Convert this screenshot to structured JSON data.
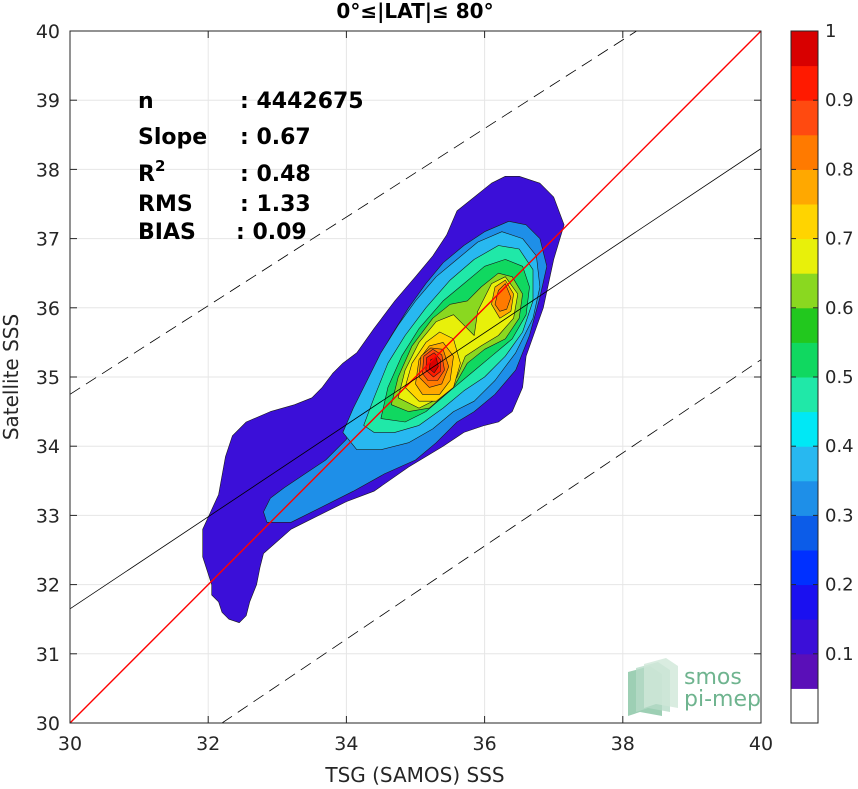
{
  "chart_data": {
    "type": "heatmap",
    "subtype": "filled-contour density scatter",
    "title": "0°≤|LAT|≤ 80°",
    "xlabel": "TSG (SAMOS) SSS",
    "ylabel": "Satellite SSS",
    "xlim": [
      30,
      40
    ],
    "ylim": [
      30,
      40
    ],
    "x_ticks": [
      "30",
      "32",
      "34",
      "36",
      "38",
      "40"
    ],
    "y_ticks": [
      "30",
      "31",
      "32",
      "33",
      "34",
      "35",
      "36",
      "37",
      "38",
      "39",
      "40"
    ],
    "grid": true,
    "stats": [
      {
        "label": "n",
        "value": ": 4442675"
      },
      {
        "label": "Slope",
        "value": ": 0.67"
      },
      {
        "label": "R",
        "sup": "2",
        "value": ": 0.48"
      },
      {
        "label": "RMS",
        "value": ": 1.33"
      },
      {
        "label": "BIAS",
        "value": ": 0.09"
      }
    ],
    "lines": [
      {
        "kind": "identity",
        "color": "#ff0000",
        "style": "solid",
        "points": [
          [
            30,
            30
          ],
          [
            40,
            40
          ]
        ]
      },
      {
        "kind": "regression",
        "color": "#000000",
        "style": "solid",
        "points": [
          [
            30,
            31.65
          ],
          [
            40,
            38.3
          ]
        ]
      },
      {
        "kind": "upper-bound",
        "color": "#000000",
        "style": "dashed",
        "points": [
          [
            30,
            34.75
          ],
          [
            38.2,
            40
          ]
        ]
      },
      {
        "kind": "lower-bound",
        "color": "#000000",
        "style": "dashed",
        "points": [
          [
            32.2,
            30
          ],
          [
            40,
            35.25
          ]
        ]
      }
    ],
    "colorbar": {
      "ticks": [
        "0.1",
        "0.2",
        "0.3",
        "0.4",
        "0.5",
        "0.6",
        "0.7",
        "0.8",
        "0.9",
        "1"
      ],
      "levels": [
        0,
        0.05,
        0.1,
        0.15,
        0.2,
        0.25,
        0.3,
        0.35,
        0.4,
        0.45,
        0.5,
        0.55,
        0.6,
        0.65,
        0.7,
        0.75,
        0.8,
        0.85,
        0.9,
        0.95,
        1
      ],
      "colors": [
        "#ffffff",
        "#5a0fb8",
        "#3b0fd8",
        "#1a10f0",
        "#0030ff",
        "#0c5ce8",
        "#1e8fe8",
        "#28b8f0",
        "#00e8f5",
        "#20e8a8",
        "#10d860",
        "#22c81e",
        "#8ad820",
        "#e8f00a",
        "#ffd400",
        "#ffa800",
        "#ff7a00",
        "#ff4a10",
        "#ff1a00",
        "#d80000",
        "#8c0000"
      ]
    },
    "contours": [
      {
        "level": 0.05,
        "color": "#3b0fd8",
        "points": [
          [
            32.45,
            31.45
          ],
          [
            32.3,
            31.5
          ],
          [
            32.2,
            31.6
          ],
          [
            32.15,
            31.75
          ],
          [
            32.05,
            31.85
          ],
          [
            32.05,
            32.0
          ],
          [
            31.92,
            32.4
          ],
          [
            31.92,
            32.8
          ],
          [
            32.15,
            33.3
          ],
          [
            32.25,
            33.85
          ],
          [
            32.35,
            34.15
          ],
          [
            32.55,
            34.35
          ],
          [
            32.9,
            34.5
          ],
          [
            33.25,
            34.6
          ],
          [
            33.5,
            34.7
          ],
          [
            33.65,
            34.85
          ],
          [
            33.8,
            35.05
          ],
          [
            33.95,
            35.2
          ],
          [
            34.15,
            35.35
          ],
          [
            34.4,
            35.7
          ],
          [
            34.7,
            36.1
          ],
          [
            35.0,
            36.45
          ],
          [
            35.25,
            36.75
          ],
          [
            35.45,
            37.05
          ],
          [
            35.6,
            37.4
          ],
          [
            35.85,
            37.6
          ],
          [
            36.1,
            37.8
          ],
          [
            36.3,
            37.9
          ],
          [
            36.5,
            37.9
          ],
          [
            36.8,
            37.8
          ],
          [
            37.0,
            37.6
          ],
          [
            37.15,
            37.2
          ],
          [
            37.0,
            36.7
          ],
          [
            36.85,
            36.0
          ],
          [
            36.6,
            35.3
          ],
          [
            36.55,
            34.85
          ],
          [
            36.4,
            34.5
          ],
          [
            36.2,
            34.35
          ],
          [
            36.0,
            34.3
          ],
          [
            35.7,
            34.2
          ],
          [
            35.4,
            34.0
          ],
          [
            34.9,
            33.7
          ],
          [
            34.4,
            33.35
          ],
          [
            34.0,
            33.2
          ],
          [
            33.6,
            33.0
          ],
          [
            33.2,
            32.8
          ],
          [
            32.8,
            32.45
          ],
          [
            32.75,
            32.25
          ],
          [
            32.7,
            32.0
          ],
          [
            32.6,
            31.75
          ],
          [
            32.55,
            31.55
          ]
        ]
      },
      {
        "level": 0.25,
        "color": "#1e8fe8",
        "points": [
          [
            32.85,
            32.9
          ],
          [
            32.8,
            33.05
          ],
          [
            32.9,
            33.25
          ],
          [
            33.1,
            33.4
          ],
          [
            33.4,
            33.6
          ],
          [
            33.7,
            33.8
          ],
          [
            34.0,
            34.1
          ],
          [
            34.15,
            34.45
          ],
          [
            34.3,
            34.85
          ],
          [
            34.45,
            35.25
          ],
          [
            34.65,
            35.6
          ],
          [
            34.9,
            36.0
          ],
          [
            35.15,
            36.35
          ],
          [
            35.4,
            36.65
          ],
          [
            35.7,
            36.9
          ],
          [
            36.0,
            37.1
          ],
          [
            36.35,
            37.25
          ],
          [
            36.6,
            37.2
          ],
          [
            36.8,
            37.0
          ],
          [
            36.9,
            36.6
          ],
          [
            36.8,
            36.15
          ],
          [
            36.65,
            35.6
          ],
          [
            36.45,
            35.1
          ],
          [
            36.15,
            34.75
          ],
          [
            35.85,
            34.5
          ],
          [
            35.6,
            34.35
          ],
          [
            35.3,
            34.05
          ],
          [
            35.0,
            33.8
          ],
          [
            34.55,
            33.6
          ],
          [
            34.1,
            33.35
          ],
          [
            33.6,
            33.1
          ],
          [
            33.2,
            32.9
          ]
        ]
      },
      {
        "level": 0.35,
        "color": "#28b8f0",
        "points": [
          [
            33.95,
            34.2
          ],
          [
            34.1,
            34.55
          ],
          [
            34.3,
            34.95
          ],
          [
            34.5,
            35.35
          ],
          [
            34.75,
            35.75
          ],
          [
            35.0,
            36.1
          ],
          [
            35.3,
            36.45
          ],
          [
            35.6,
            36.7
          ],
          [
            35.9,
            36.95
          ],
          [
            36.25,
            37.1
          ],
          [
            36.55,
            37.0
          ],
          [
            36.75,
            36.75
          ],
          [
            36.8,
            36.3
          ],
          [
            36.7,
            35.85
          ],
          [
            36.45,
            35.35
          ],
          [
            36.15,
            34.95
          ],
          [
            35.85,
            34.65
          ],
          [
            35.55,
            34.5
          ],
          [
            35.25,
            34.25
          ],
          [
            34.9,
            34.05
          ],
          [
            34.5,
            33.95
          ],
          [
            34.15,
            33.95
          ]
        ]
      },
      {
        "level": 0.45,
        "color": "#20e8a8",
        "points": [
          [
            34.25,
            34.3
          ],
          [
            34.4,
            34.7
          ],
          [
            34.6,
            35.2
          ],
          [
            34.85,
            35.6
          ],
          [
            35.15,
            36.0
          ],
          [
            35.5,
            36.4
          ],
          [
            35.85,
            36.7
          ],
          [
            36.2,
            36.9
          ],
          [
            36.5,
            36.85
          ],
          [
            36.7,
            36.55
          ],
          [
            36.7,
            36.1
          ],
          [
            36.55,
            35.65
          ],
          [
            36.3,
            35.3
          ],
          [
            36.0,
            35.0
          ],
          [
            35.7,
            34.8
          ],
          [
            35.4,
            34.55
          ],
          [
            35.05,
            34.3
          ],
          [
            34.7,
            34.2
          ],
          [
            34.4,
            34.2
          ]
        ]
      },
      {
        "level": 0.5,
        "color": "#10d860",
        "points": [
          [
            34.5,
            34.4
          ],
          [
            34.6,
            34.85
          ],
          [
            34.8,
            35.3
          ],
          [
            35.05,
            35.7
          ],
          [
            35.4,
            36.1
          ],
          [
            35.7,
            36.35
          ],
          [
            36.0,
            36.6
          ],
          [
            36.3,
            36.7
          ],
          [
            36.55,
            36.6
          ],
          [
            36.65,
            36.3
          ],
          [
            36.6,
            35.9
          ],
          [
            36.4,
            35.55
          ],
          [
            36.1,
            35.3
          ],
          [
            35.8,
            35.05
          ],
          [
            35.5,
            34.8
          ],
          [
            35.15,
            34.5
          ],
          [
            34.85,
            34.35
          ]
        ]
      },
      {
        "level": 0.6,
        "color": "#8ad820",
        "points": [
          [
            34.65,
            34.6
          ],
          [
            34.75,
            35.0
          ],
          [
            34.95,
            35.45
          ],
          [
            35.25,
            35.85
          ],
          [
            35.5,
            36.05
          ],
          [
            35.75,
            36.1
          ],
          [
            35.95,
            36.3
          ],
          [
            36.2,
            36.5
          ],
          [
            36.4,
            36.45
          ],
          [
            36.55,
            36.2
          ],
          [
            36.5,
            35.85
          ],
          [
            36.3,
            35.55
          ],
          [
            36.0,
            35.4
          ],
          [
            35.75,
            35.2
          ],
          [
            35.55,
            34.85
          ],
          [
            35.2,
            34.55
          ],
          [
            34.9,
            34.5
          ]
        ]
      },
      {
        "level": 0.65,
        "color": "#e8f00a",
        "points": [
          [
            34.75,
            34.7
          ],
          [
            34.85,
            35.1
          ],
          [
            35.05,
            35.5
          ],
          [
            35.3,
            35.8
          ],
          [
            35.55,
            35.9
          ],
          [
            35.7,
            35.75
          ],
          [
            35.85,
            35.6
          ],
          [
            35.9,
            35.95
          ],
          [
            36.1,
            36.35
          ],
          [
            36.3,
            36.45
          ],
          [
            36.48,
            36.2
          ],
          [
            36.42,
            35.85
          ],
          [
            36.2,
            35.6
          ],
          [
            35.95,
            35.45
          ],
          [
            35.72,
            35.3
          ],
          [
            35.6,
            35.0
          ],
          [
            35.35,
            34.7
          ],
          [
            35.05,
            34.55
          ]
        ]
      },
      {
        "level": 0.7,
        "color": "#ffd400",
        "points": [
          [
            34.85,
            34.85
          ],
          [
            34.95,
            35.2
          ],
          [
            35.15,
            35.5
          ],
          [
            35.35,
            35.65
          ],
          [
            35.55,
            35.55
          ],
          [
            35.65,
            35.2
          ],
          [
            35.55,
            34.85
          ],
          [
            35.3,
            34.65
          ],
          [
            35.05,
            34.65
          ]
        ]
      },
      {
        "level": 0.75,
        "color": "#ffa800",
        "points": [
          [
            35.0,
            34.9
          ],
          [
            35.05,
            35.25
          ],
          [
            35.2,
            35.45
          ],
          [
            35.4,
            35.5
          ],
          [
            35.55,
            35.3
          ],
          [
            35.5,
            34.95
          ],
          [
            35.35,
            34.75
          ],
          [
            35.1,
            34.75
          ]
        ]
      },
      {
        "level": 0.75,
        "color": "#ffa800",
        "points": [
          [
            36.1,
            36.05
          ],
          [
            36.15,
            36.3
          ],
          [
            36.3,
            36.4
          ],
          [
            36.42,
            36.2
          ],
          [
            36.38,
            35.95
          ],
          [
            36.22,
            35.85
          ]
        ]
      },
      {
        "level": 0.8,
        "color": "#ff7a00",
        "points": [
          [
            35.05,
            35.0
          ],
          [
            35.08,
            35.3
          ],
          [
            35.22,
            35.42
          ],
          [
            35.4,
            35.4
          ],
          [
            35.48,
            35.15
          ],
          [
            35.38,
            34.9
          ],
          [
            35.2,
            34.85
          ]
        ]
      },
      {
        "level": 0.8,
        "color": "#ff7a00",
        "points": [
          [
            36.15,
            36.05
          ],
          [
            36.2,
            36.25
          ],
          [
            36.3,
            36.35
          ],
          [
            36.38,
            36.15
          ],
          [
            36.32,
            35.98
          ],
          [
            36.22,
            35.95
          ]
        ]
      },
      {
        "level": 0.85,
        "color": "#ff4a10",
        "points": [
          [
            35.1,
            35.05
          ],
          [
            35.12,
            35.3
          ],
          [
            35.25,
            35.4
          ],
          [
            35.38,
            35.32
          ],
          [
            35.42,
            35.1
          ],
          [
            35.32,
            34.95
          ],
          [
            35.18,
            34.95
          ]
        ]
      },
      {
        "level": 0.9,
        "color": "#ff1a00",
        "points": [
          [
            35.15,
            35.1
          ],
          [
            35.16,
            35.28
          ],
          [
            35.27,
            35.35
          ],
          [
            35.36,
            35.25
          ],
          [
            35.36,
            35.08
          ],
          [
            35.26,
            35.0
          ]
        ]
      },
      {
        "level": 0.95,
        "color": "#d80000",
        "points": [
          [
            35.2,
            35.12
          ],
          [
            35.22,
            35.25
          ],
          [
            35.3,
            35.28
          ],
          [
            35.33,
            35.15
          ],
          [
            35.27,
            35.06
          ]
        ]
      }
    ]
  },
  "watermark": {
    "line1": "smos",
    "line2": "pi-mep"
  }
}
